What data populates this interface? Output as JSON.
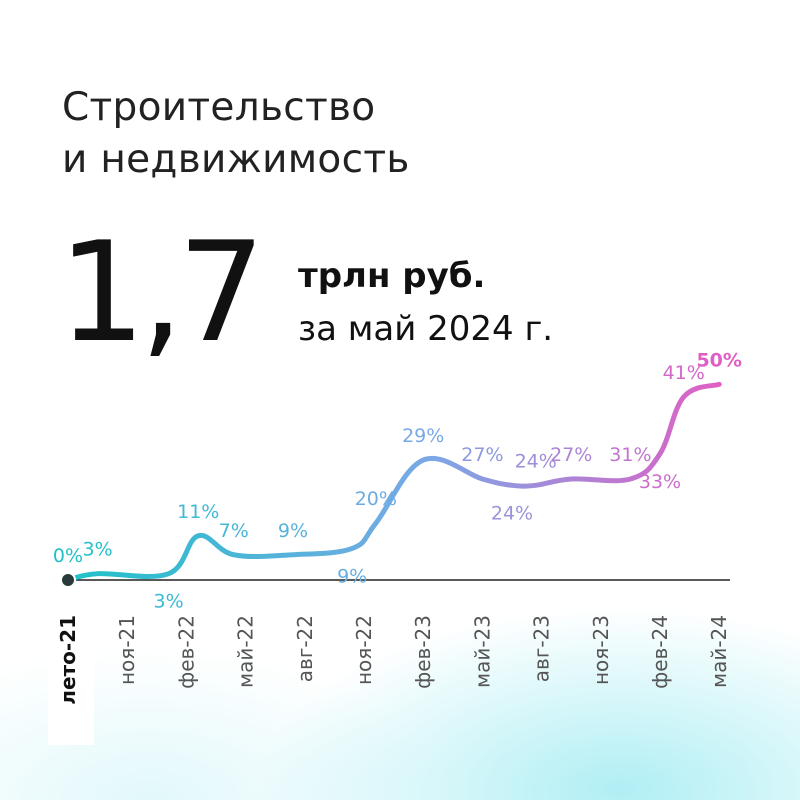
{
  "header": {
    "title_line1": "Строительство",
    "title_line2": "и недвижимость"
  },
  "headline": {
    "value": "1,7",
    "unit": "трлн руб.",
    "period": "за май 2024 г."
  },
  "colors": {
    "line_start": "#1fc2c8",
    "line_mid": "#7aa8e6",
    "line_end": "#e05fc4",
    "baseline": "#222222"
  },
  "chart_data": {
    "type": "line",
    "categories": [
      "лето-21",
      "ноя-21",
      "фев-22",
      "май-22",
      "авг-22",
      "ноя-22",
      "фев-23",
      "май-23",
      "авг-23",
      "ноя-23",
      "фев-24",
      "май-24"
    ],
    "points": [
      {
        "x": 0.0,
        "y": 0,
        "label": "0%",
        "pos": "above"
      },
      {
        "x": 0.5,
        "y": 1,
        "label": "3%",
        "pos": "above"
      },
      {
        "x": 1.7,
        "y": 1,
        "label": "3%",
        "pos": "below"
      },
      {
        "x": 2.2,
        "y": 7,
        "label": "11%",
        "pos": "above"
      },
      {
        "x": 2.8,
        "y": 4,
        "label": "7%",
        "pos": "above"
      },
      {
        "x": 3.8,
        "y": 4,
        "label": "9%",
        "pos": "above"
      },
      {
        "x": 4.8,
        "y": 5,
        "label": "9%",
        "pos": "below"
      },
      {
        "x": 5.2,
        "y": 9,
        "label": "20%",
        "pos": "above"
      },
      {
        "x": 6.0,
        "y": 19,
        "label": "29%",
        "pos": "above"
      },
      {
        "x": 7.0,
        "y": 16,
        "label": "27%",
        "pos": "above"
      },
      {
        "x": 7.5,
        "y": 15,
        "label": "24%",
        "pos": "below"
      },
      {
        "x": 7.9,
        "y": 15,
        "label": "24%",
        "pos": "above"
      },
      {
        "x": 8.5,
        "y": 16,
        "label": "27%",
        "pos": "above"
      },
      {
        "x": 9.5,
        "y": 16,
        "label": "31%",
        "pos": "above"
      },
      {
        "x": 10.0,
        "y": 20,
        "label": "33%",
        "pos": "below"
      },
      {
        "x": 10.4,
        "y": 29,
        "label": "41%",
        "pos": "above"
      },
      {
        "x": 11.0,
        "y": 31,
        "label": "50%",
        "pos": "above"
      }
    ],
    "ylim": [
      0,
      32
    ]
  }
}
